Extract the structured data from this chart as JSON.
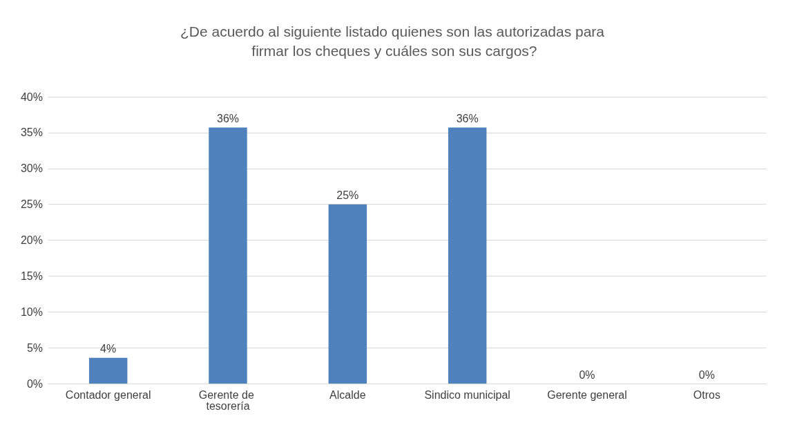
{
  "chart_data": {
    "type": "bar",
    "title": "¿De acuerdo al siguiente listado quienes son las autorizadas para firmar los cheques y cuáles son sus cargos?",
    "categories": [
      "Contador general",
      "Gerente de tesorería",
      "Alcalde",
      "Sindico municipal",
      "Gerente general",
      "Otros"
    ],
    "values": [
      3.6,
      35.7,
      25,
      35.7,
      0,
      0
    ],
    "value_labels": [
      "4%",
      "36%",
      "25%",
      "36%",
      "0%",
      "0%"
    ],
    "color": "#4f81bd",
    "ylim": [
      0,
      40
    ],
    "yticks": [
      {
        "value": 0,
        "label": "0%"
      },
      {
        "value": 5,
        "label": "5%"
      },
      {
        "value": 10,
        "label": "10%"
      },
      {
        "value": 15,
        "label": "15%"
      },
      {
        "value": 20,
        "label": "20%"
      },
      {
        "value": 25,
        "label": "25%"
      },
      {
        "value": 30,
        "label": "30%"
      },
      {
        "value": 35,
        "label": "35%"
      },
      {
        "value": 40,
        "label": "40%"
      }
    ],
    "grid": "y"
  }
}
